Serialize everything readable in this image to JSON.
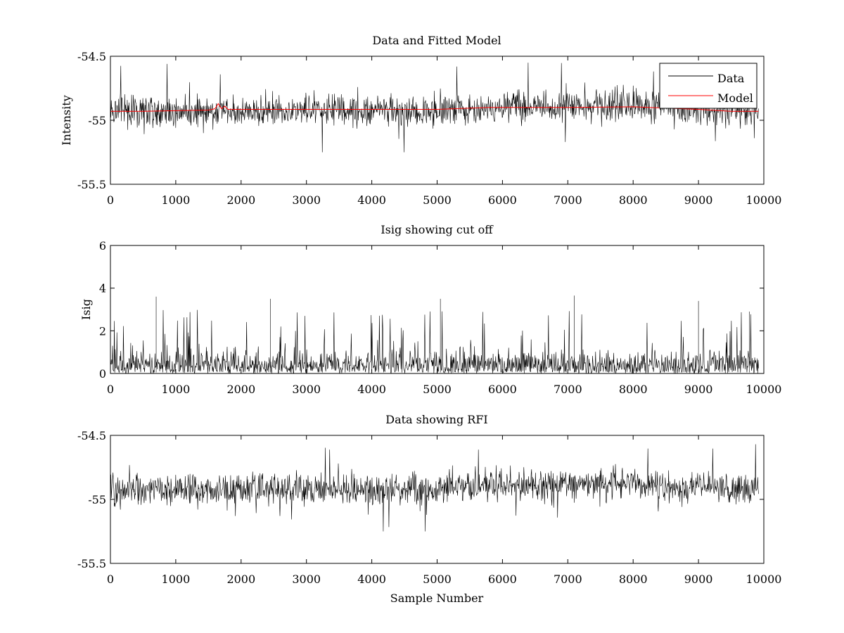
{
  "figure": {
    "background": "#ffffff"
  },
  "chart_data": [
    {
      "type": "line",
      "title": "Data and Fitted Model",
      "xlabel": "",
      "ylabel": "Intensity",
      "xlim": [
        0,
        10000
      ],
      "ylim": [
        -55.5,
        -54.5
      ],
      "xticks": [
        0,
        1000,
        2000,
        3000,
        4000,
        5000,
        6000,
        7000,
        8000,
        9000,
        10000
      ],
      "yticks": [
        -54.5,
        -55,
        -55.5
      ],
      "grid": false,
      "legend": "top-right",
      "x_range": [
        0,
        9920
      ],
      "series": [
        {
          "name": "Data",
          "color": "#000000",
          "kind": "noise",
          "mean_y": -54.92,
          "typical_range": [
            -55.1,
            -54.75
          ],
          "envelope_min": -55.25,
          "envelope_max": -54.55,
          "mean_points": [
            [
              0,
              -54.93
            ],
            [
              5000,
              -54.92
            ],
            [
              6000,
              -54.9
            ],
            [
              7000,
              -54.88
            ],
            [
              8000,
              -54.89
            ],
            [
              9000,
              -54.91
            ],
            [
              9920,
              -54.92
            ]
          ]
        },
        {
          "name": "Model",
          "color": "#ff0000",
          "kind": "line",
          "points": [
            [
              0,
              -54.93
            ],
            [
              500,
              -54.93
            ],
            [
              1000,
              -54.925
            ],
            [
              1500,
              -54.92
            ],
            [
              1600,
              -54.91
            ],
            [
              1650,
              -54.87
            ],
            [
              1700,
              -54.91
            ],
            [
              1750,
              -54.89
            ],
            [
              1800,
              -54.915
            ],
            [
              2000,
              -54.915
            ],
            [
              3000,
              -54.915
            ],
            [
              4000,
              -54.915
            ],
            [
              5000,
              -54.915
            ],
            [
              5800,
              -54.9
            ],
            [
              7000,
              -54.9
            ],
            [
              8000,
              -54.895
            ],
            [
              9000,
              -54.915
            ],
            [
              9500,
              -54.93
            ],
            [
              9920,
              -54.93
            ]
          ]
        }
      ]
    },
    {
      "type": "line",
      "title": "Isig showing cut off",
      "xlabel": "",
      "ylabel": "Isig",
      "xlim": [
        0,
        10000
      ],
      "ylim": [
        0,
        6
      ],
      "xticks": [
        0,
        1000,
        2000,
        3000,
        4000,
        5000,
        6000,
        7000,
        8000,
        9000,
        10000
      ],
      "yticks": [
        0,
        2,
        4,
        6
      ],
      "grid": false,
      "x_range": [
        0,
        9920
      ],
      "series": [
        {
          "color": "#000000",
          "kind": "abs-noise",
          "typical_range": [
            0,
            1.6
          ],
          "envelope_max": 3.65,
          "peaks": [
            [
              700,
              3.6
            ],
            [
              2450,
              3.5
            ],
            [
              5050,
              3.5
            ],
            [
              7100,
              3.65
            ],
            [
              9000,
              3.4
            ],
            [
              9780,
              2.9
            ]
          ]
        }
      ]
    },
    {
      "type": "line",
      "title": "Data showing RFI",
      "xlabel": "Sample Number",
      "ylabel": "",
      "xlim": [
        0,
        10000
      ],
      "ylim": [
        -55.5,
        -54.5
      ],
      "xticks": [
        0,
        1000,
        2000,
        3000,
        4000,
        5000,
        6000,
        7000,
        8000,
        9000,
        10000
      ],
      "yticks": [
        -54.5,
        -55,
        -55.5
      ],
      "grid": false,
      "x_range": [
        0,
        9920
      ],
      "series": [
        {
          "color": "#000000",
          "kind": "noise",
          "mean_y": -54.92,
          "typical_range": [
            -55.1,
            -54.75
          ],
          "envelope_min": -55.25,
          "envelope_max": -54.55,
          "mean_points": [
            [
              0,
              -54.93
            ],
            [
              5000,
              -54.92
            ],
            [
              6000,
              -54.9
            ],
            [
              7000,
              -54.88
            ],
            [
              8000,
              -54.89
            ],
            [
              9000,
              -54.91
            ],
            [
              9920,
              -54.92
            ]
          ]
        }
      ]
    }
  ]
}
